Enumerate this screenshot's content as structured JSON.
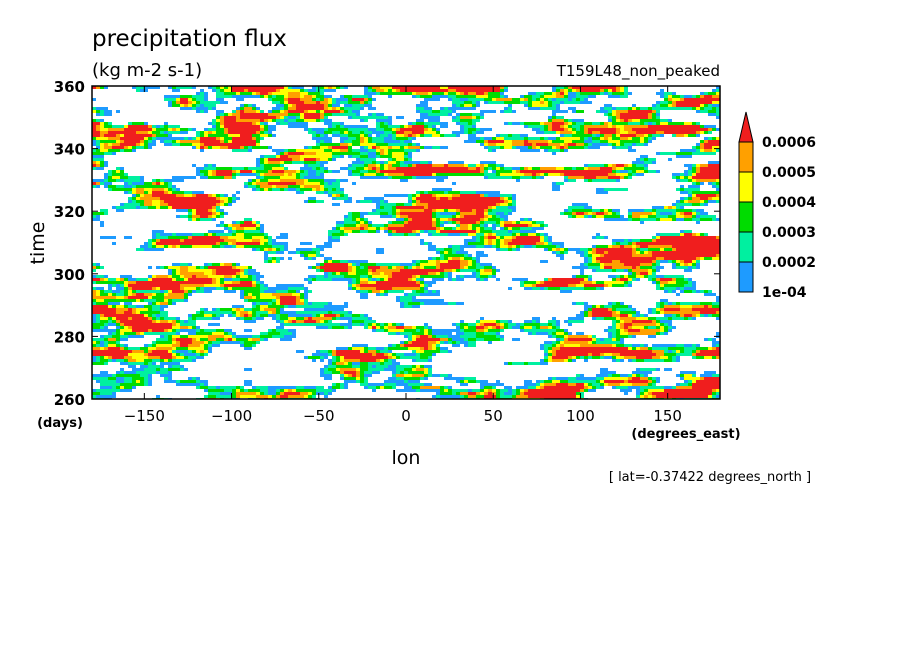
{
  "chart_data": {
    "type": "heatmap",
    "title": "precipitation flux",
    "subtitle": "(kg m-2 s-1)",
    "run_label": "T159L48_non_peaked",
    "xlabel": "lon",
    "xunits": "(degrees_east)",
    "ylabel": "time",
    "yunits": "(days)",
    "xlim": [
      -180,
      180
    ],
    "ylim": [
      260,
      360
    ],
    "xticks": [
      -150,
      -100,
      -50,
      0,
      50,
      100,
      150
    ],
    "yticks": [
      260,
      280,
      300,
      320,
      340,
      360
    ],
    "footnote": "[ lat=-0.37422 degrees_north ]",
    "legend": {
      "placement": "right",
      "levels": [
        "1e-04",
        "0.0002",
        "0.0003",
        "0.0004",
        "0.0005",
        "0.0006"
      ],
      "colors": [
        "#1e9bff",
        "#00f0a0",
        "#00dc00",
        "#ffff00",
        "#ffa000",
        "#f01e1e"
      ]
    }
  }
}
